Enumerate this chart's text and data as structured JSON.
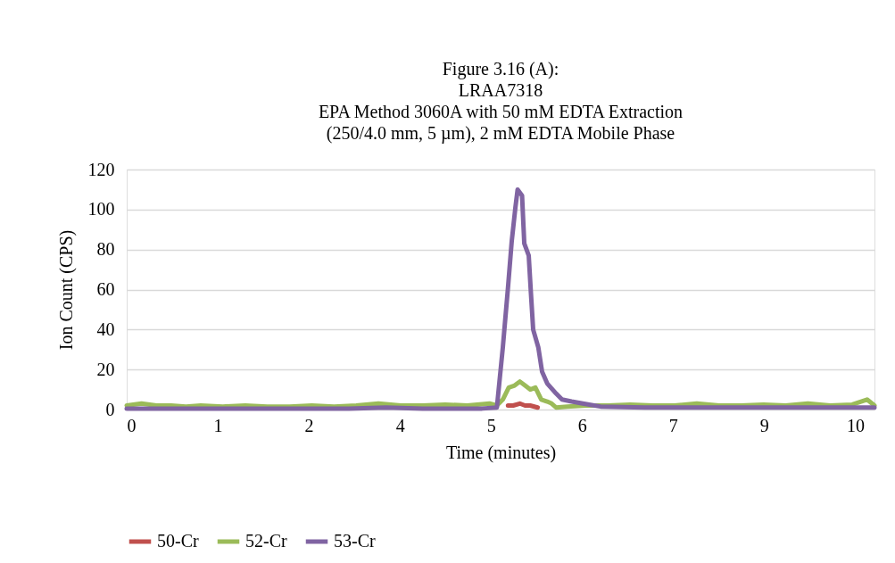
{
  "chart_data": {
    "type": "line",
    "title": "Figure 3.16 (A):\nLRAA7318\nEPA Method 3060A with 50 mM EDTA Extraction\n(250/4.0 mm, 5 µm), 2 mM EDTA Mobile Phase",
    "xlabel": "Time (minutes)",
    "ylabel": "Ion Count (CPS)",
    "xlim": [
      0,
      10.1
    ],
    "ylim": [
      0,
      120
    ],
    "xticks": [
      0,
      {
        "value": 1.23,
        "label": "1"
      },
      {
        "value": 2.46,
        "label": "2"
      },
      {
        "value": 3.69,
        "label": "4"
      },
      {
        "value": 4.92,
        "label": "5"
      },
      {
        "value": 6.15,
        "label": "6"
      },
      {
        "value": 7.38,
        "label": "7"
      },
      {
        "value": 8.61,
        "label": "9"
      },
      {
        "value": 9.84,
        "label": "10"
      }
    ],
    "yticks": [
      0,
      20,
      40,
      60,
      80,
      100,
      120
    ],
    "grid": "y",
    "legend": "bottom",
    "marker": "none",
    "line_style": "solid",
    "series": [
      {
        "name": "50-Cr",
        "color": "#c0504d",
        "x": [
          5.15,
          5.22,
          5.31,
          5.38,
          5.45,
          5.55
        ],
        "values": [
          2,
          2,
          3,
          2,
          2,
          1
        ]
      },
      {
        "name": "52-Cr",
        "color": "#9bbb59",
        "x": [
          0,
          0.2,
          0.4,
          0.6,
          0.8,
          1.0,
          1.3,
          1.6,
          1.9,
          2.2,
          2.5,
          2.8,
          3.1,
          3.4,
          3.7,
          4.0,
          4.3,
          4.6,
          4.9,
          5.0,
          5.08,
          5.16,
          5.24,
          5.31,
          5.38,
          5.45,
          5.52,
          5.6,
          5.68,
          5.74,
          5.8,
          5.95,
          6.2,
          6.5,
          6.8,
          7.1,
          7.4,
          7.7,
          8.0,
          8.3,
          8.6,
          8.9,
          9.2,
          9.5,
          9.8,
          10.0,
          10.1
        ],
        "values": [
          2,
          3,
          2,
          2,
          1.5,
          2,
          1.5,
          2,
          1.5,
          1.5,
          2,
          1.5,
          2,
          3,
          2,
          2,
          2.5,
          2,
          3,
          2,
          5,
          11,
          12,
          14,
          12,
          10,
          11,
          5,
          4,
          3,
          1,
          1.5,
          2,
          2,
          2.5,
          2,
          2,
          3,
          2,
          2,
          2.5,
          2,
          3,
          2,
          2.5,
          5,
          2
        ]
      },
      {
        "name": "53-Cr",
        "color": "#8064a2",
        "x": [
          0,
          0.5,
          1.0,
          1.5,
          2.0,
          2.5,
          3.0,
          3.5,
          4.0,
          4.5,
          4.8,
          5.0,
          5.08,
          5.15,
          5.2,
          5.25,
          5.28,
          5.34,
          5.37,
          5.43,
          5.46,
          5.49,
          5.56,
          5.61,
          5.68,
          5.8,
          5.88,
          6.01,
          6.16,
          6.4,
          7.0,
          7.5,
          8.0,
          8.5,
          9.0,
          9.5,
          10.1
        ],
        "values": [
          0.5,
          0.5,
          0.5,
          0.5,
          0.5,
          0.5,
          0.5,
          1,
          0.5,
          0.5,
          0.5,
          1,
          31,
          61,
          84,
          101,
          110,
          107,
          83,
          77,
          58,
          40,
          31,
          19,
          13,
          8,
          5,
          4,
          3,
          1.5,
          1,
          1,
          1,
          1,
          1,
          1,
          1
        ]
      }
    ]
  }
}
